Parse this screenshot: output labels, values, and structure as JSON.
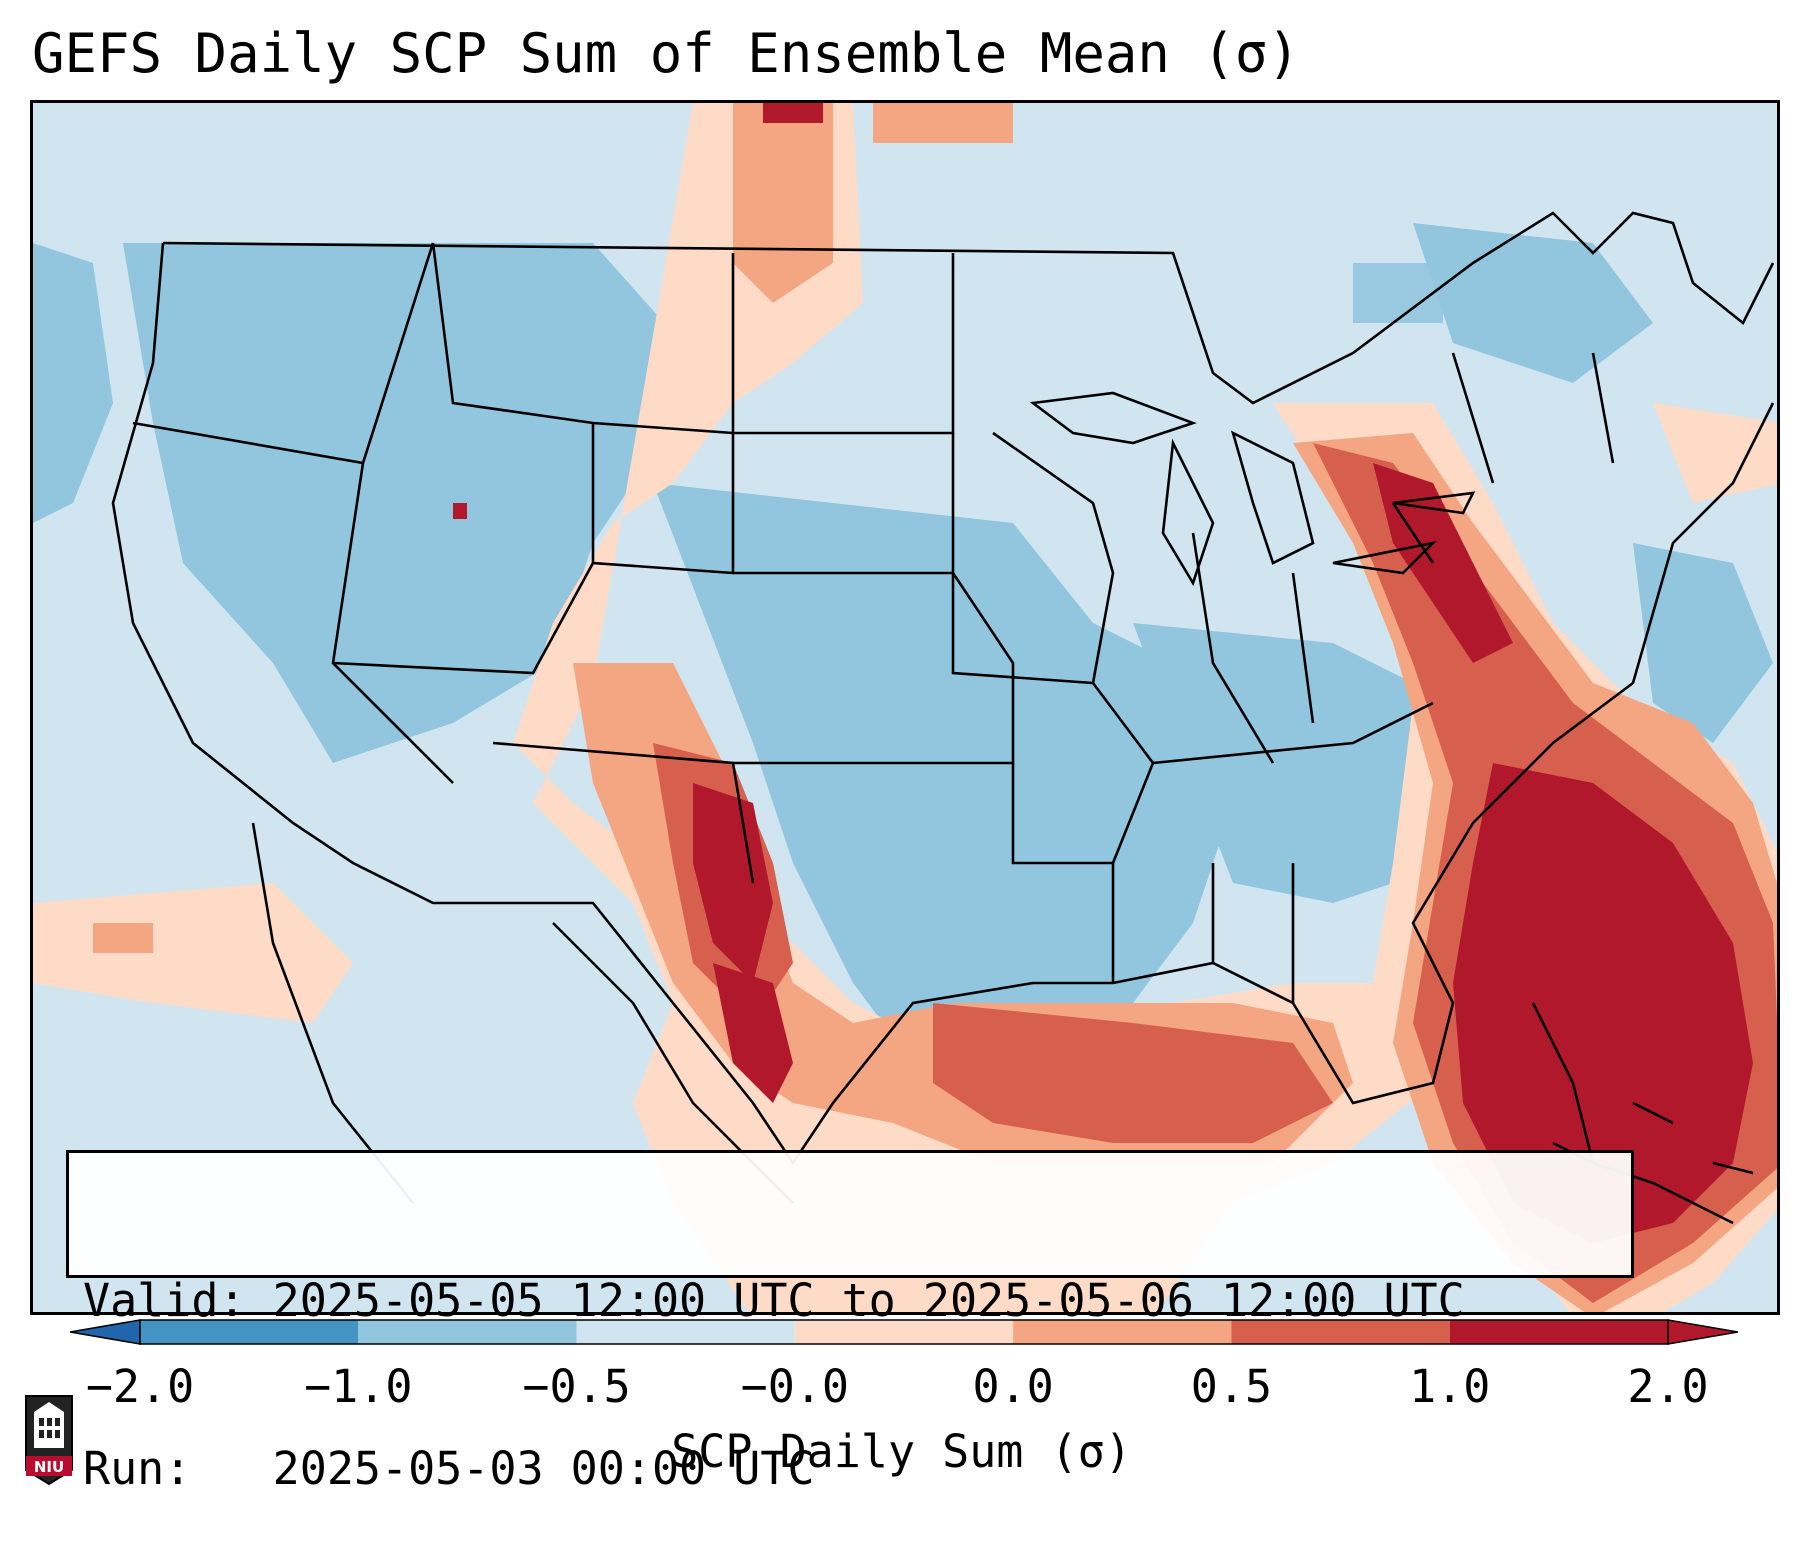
{
  "title": "GEFS Daily SCP Sum of Ensemble Mean (σ)",
  "info": {
    "valid_label": "Valid:",
    "valid_value": "2025-05-05 12:00 UTC to 2025-05-06 12:00 UTC",
    "run_label": "Run:",
    "run_value": "2025-05-03 00:00 UTC"
  },
  "colorbar": {
    "label": "SCP Daily Sum (σ)",
    "ticks": [
      "−2.0",
      "−1.0",
      "−0.5",
      "−0.0",
      "0.0",
      "0.5",
      "1.0",
      "2.0"
    ],
    "colors": [
      "#4393c3",
      "#92c5de",
      "#d1e5f0",
      "#fddbc7",
      "#f4a582",
      "#d6604d",
      "#b2182b"
    ],
    "extend_low_color": "#2166ac",
    "extend_high_color": "#b2182b"
  },
  "logo": {
    "text": "NIU",
    "color": "#ba0c2f"
  },
  "map_colors": {
    "light_blue": "#d1e5f0",
    "mid_blue": "#92c5de",
    "light_red": "#fddbc7",
    "mid_red": "#f4a582",
    "red": "#d6604d",
    "dark_red": "#b2182b"
  }
}
